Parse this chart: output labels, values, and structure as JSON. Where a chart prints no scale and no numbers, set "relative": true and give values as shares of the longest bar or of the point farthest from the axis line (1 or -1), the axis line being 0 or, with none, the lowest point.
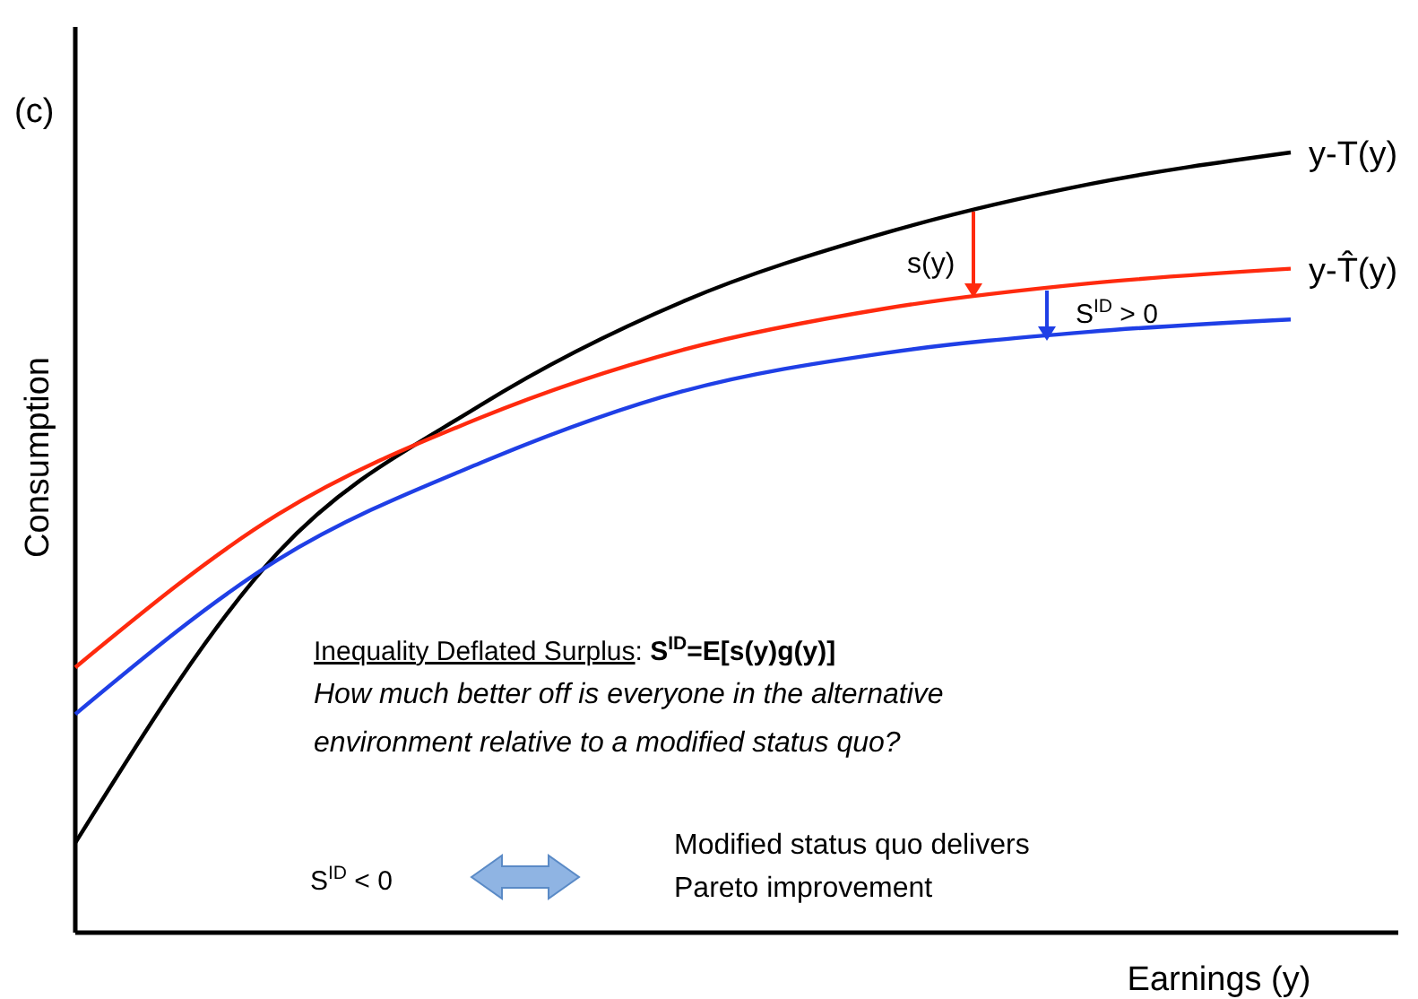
{
  "chart_data": {
    "type": "line",
    "relative": true,
    "xlabel": "Earnings   (y)",
    "ylabel": "Consumption",
    "categories": [
      null,
      null,
      null,
      null,
      null,
      null,
      null
    ],
    "series": [
      {
        "name": "y-T(y)",
        "color": "#000000",
        "values": [
          0.115,
          0.487,
          0.676,
          0.809,
          0.897,
          0.959,
          1.0
        ]
      },
      {
        "name": "y-T̂(y)",
        "color": "#ff2a0e",
        "values": [
          0.34,
          0.536,
          0.66,
          0.747,
          0.8,
          0.832,
          0.851
        ]
      },
      {
        "color": "#1f3fe6",
        "values": [
          0.28,
          0.478,
          0.602,
          0.694,
          0.743,
          0.77,
          0.786
        ]
      }
    ],
    "annotations": [
      "(c)",
      "s(y)",
      "S$^{ID}$ > 0",
      "Inequality Deflated Surplus: S$^{ID}$=E[s(y)g(y)]",
      "How much better off is everyone in the alternative",
      "environment relative to a modified status quo?",
      "S$^{ID}$ < 0",
      "Modified status quo delivers",
      "Pareto improvement"
    ],
    "legend": false,
    "grid": false,
    "marker": "none",
    "line_style": "solid"
  }
}
